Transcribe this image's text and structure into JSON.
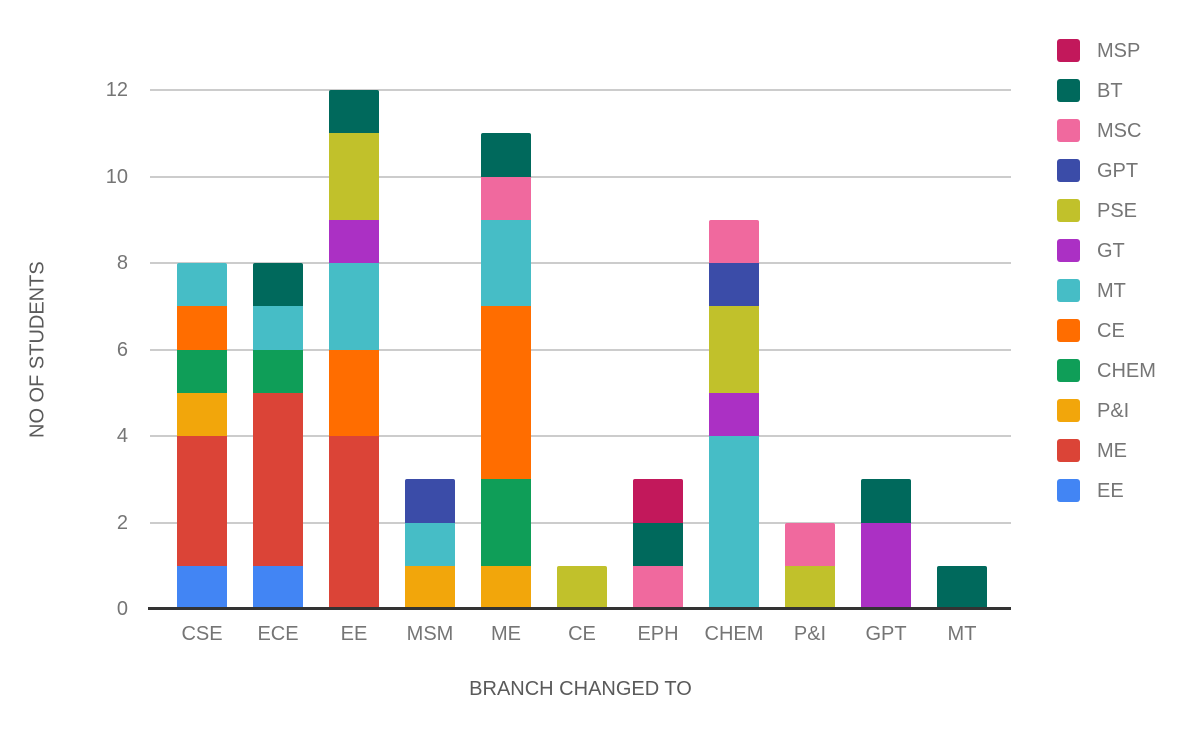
{
  "page": {
    "background": "#FFFFFF"
  },
  "axes": {
    "y_title": "NO OF STUDENTS",
    "x_title": "BRANCH CHANGED TO",
    "tick_label_color": "#757575",
    "axis_title_color": "#5A5A5A",
    "gridline_color": "#CCCCCC",
    "baseline_color": "#333333"
  },
  "chart_data": {
    "type": "bar",
    "stacked": true,
    "title": "",
    "xlabel": "BRANCH CHANGED TO",
    "ylabel": "NO OF STUDENTS",
    "ylim": [
      0,
      12
    ],
    "y_ticks": [
      0,
      2,
      4,
      6,
      8,
      10,
      12
    ],
    "grid": true,
    "legend_position": "right",
    "legend_order_top_to_bottom": [
      "MSP",
      "BT",
      "MSC",
      "GPT",
      "PSE",
      "GT",
      "MT",
      "CE",
      "CHEM",
      "P&I",
      "ME",
      "EE"
    ],
    "categories": [
      "CSE",
      "ECE",
      "EE",
      "MSM",
      "ME",
      "CE",
      "EPH",
      "CHEM",
      "P&I",
      "GPT",
      "MT"
    ],
    "category_totals": [
      8,
      8,
      12,
      3,
      11,
      1,
      3,
      9,
      2,
      3,
      1
    ],
    "series": [
      {
        "name": "EE",
        "color": "#4285F4",
        "values": [
          1,
          1,
          0,
          0,
          0,
          0,
          0,
          0,
          0,
          0,
          0
        ]
      },
      {
        "name": "ME",
        "color": "#DB4437",
        "values": [
          3,
          4,
          4,
          0,
          0,
          0,
          0,
          0,
          0,
          0,
          0
        ]
      },
      {
        "name": "P&I",
        "color": "#F2A60B",
        "values": [
          1,
          0,
          0,
          1,
          1,
          0,
          0,
          0,
          0,
          0,
          0
        ]
      },
      {
        "name": "CHEM",
        "color": "#0F9E58",
        "values": [
          1,
          1,
          0,
          0,
          2,
          0,
          0,
          0,
          0,
          0,
          0
        ]
      },
      {
        "name": "CE",
        "color": "#FF6D00",
        "values": [
          1,
          0,
          2,
          0,
          4,
          0,
          0,
          0,
          0,
          0,
          0
        ]
      },
      {
        "name": "MT",
        "color": "#46BDC6",
        "values": [
          1,
          1,
          2,
          1,
          2,
          0,
          0,
          4,
          0,
          0,
          0
        ]
      },
      {
        "name": "GT",
        "color": "#AB30C4",
        "values": [
          0,
          0,
          1,
          0,
          0,
          0,
          0,
          1,
          0,
          2,
          0
        ]
      },
      {
        "name": "PSE",
        "color": "#C1C12B",
        "values": [
          0,
          0,
          2,
          0,
          0,
          1,
          0,
          2,
          1,
          0,
          0
        ]
      },
      {
        "name": "GPT",
        "color": "#3B4CA8",
        "values": [
          0,
          0,
          0,
          1,
          0,
          0,
          0,
          1,
          0,
          0,
          0
        ]
      },
      {
        "name": "MSC",
        "color": "#F0699E",
        "values": [
          0,
          0,
          0,
          0,
          1,
          0,
          1,
          1,
          1,
          0,
          0
        ]
      },
      {
        "name": "BT",
        "color": "#00695C",
        "values": [
          0,
          1,
          1,
          0,
          1,
          0,
          1,
          0,
          0,
          1,
          1
        ]
      },
      {
        "name": "MSP",
        "color": "#C2185B",
        "values": [
          0,
          0,
          0,
          0,
          0,
          0,
          1,
          0,
          0,
          0,
          0
        ]
      }
    ]
  }
}
